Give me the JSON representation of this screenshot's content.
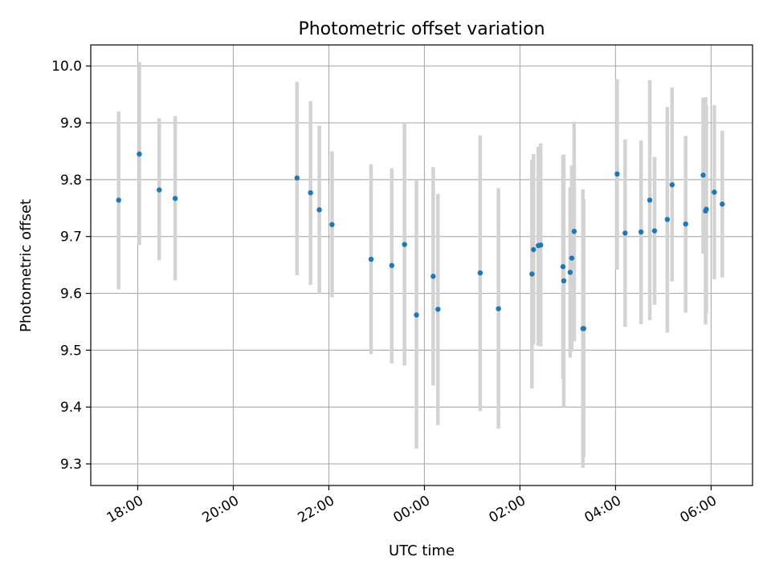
{
  "chart_data": {
    "type": "scatter",
    "title": "Photometric offset variation",
    "xlabel": "UTC time",
    "ylabel": "Photometric offset",
    "x_tick_labels": [
      "18:00",
      "20:00",
      "22:00",
      "00:00",
      "02:00",
      "04:00",
      "06:00"
    ],
    "y_tick_labels": [
      "9.3",
      "9.4",
      "9.5",
      "9.6",
      "9.7",
      "9.8",
      "9.9",
      "10.0"
    ],
    "ylim": [
      9.262,
      10.037
    ],
    "xlim": [
      "17:01",
      "06:52"
    ],
    "grid": true,
    "colors": {
      "marker": "#1f77b4",
      "errorbar": "#d3d3d3",
      "grid": "#b0b0b0",
      "axes": "#000000"
    },
    "points": [
      {
        "time": "17:36",
        "y": 9.764,
        "ylo": 9.607,
        "yhi": 9.92
      },
      {
        "time": "18:02",
        "y": 9.845,
        "ylo": 9.685,
        "yhi": 10.007
      },
      {
        "time": "18:27",
        "y": 9.782,
        "ylo": 9.658,
        "yhi": 9.908
      },
      {
        "time": "18:47",
        "y": 9.767,
        "ylo": 9.623,
        "yhi": 9.912
      },
      {
        "time": "21:20",
        "y": 9.803,
        "ylo": 9.632,
        "yhi": 9.972
      },
      {
        "time": "21:37",
        "y": 9.777,
        "ylo": 9.615,
        "yhi": 9.938
      },
      {
        "time": "21:48",
        "y": 9.747,
        "ylo": 9.6,
        "yhi": 9.895
      },
      {
        "time": "22:04",
        "y": 9.721,
        "ylo": 9.593,
        "yhi": 9.85
      },
      {
        "time": "22:53",
        "y": 9.66,
        "ylo": 9.493,
        "yhi": 9.827
      },
      {
        "time": "23:19",
        "y": 9.649,
        "ylo": 9.477,
        "yhi": 9.82
      },
      {
        "time": "23:35",
        "y": 9.686,
        "ylo": 9.473,
        "yhi": 9.9
      },
      {
        "time": "23:50",
        "y": 9.562,
        "ylo": 9.327,
        "yhi": 9.8
      },
      {
        "time": "00:11",
        "y": 9.63,
        "ylo": 9.438,
        "yhi": 9.822
      },
      {
        "time": "00:17",
        "y": 9.572,
        "ylo": 9.368,
        "yhi": 9.775
      },
      {
        "time": "01:10",
        "y": 9.636,
        "ylo": 9.393,
        "yhi": 9.878
      },
      {
        "time": "01:33",
        "y": 9.573,
        "ylo": 9.362,
        "yhi": 9.785
      },
      {
        "time": "02:15",
        "y": 9.634,
        "ylo": 9.433,
        "yhi": 9.835
      },
      {
        "time": "02:17",
        "y": 9.677,
        "ylo": 9.51,
        "yhi": 9.845
      },
      {
        "time": "02:23",
        "y": 9.684,
        "ylo": 9.508,
        "yhi": 9.858
      },
      {
        "time": "02:26",
        "y": 9.685,
        "ylo": 9.507,
        "yhi": 9.864
      },
      {
        "time": "02:54",
        "y": 9.647,
        "ylo": 9.45,
        "yhi": 9.844
      },
      {
        "time": "02:55",
        "y": 9.622,
        "ylo": 9.4,
        "yhi": 9.844
      },
      {
        "time": "03:03",
        "y": 9.637,
        "ylo": 9.487,
        "yhi": 9.787
      },
      {
        "time": "03:05",
        "y": 9.662,
        "ylo": 9.498,
        "yhi": 9.825
      },
      {
        "time": "03:08",
        "y": 9.709,
        "ylo": 9.516,
        "yhi": 9.902
      },
      {
        "time": "03:19",
        "y": 9.538,
        "ylo": 9.293,
        "yhi": 9.783
      },
      {
        "time": "03:20",
        "y": 9.538,
        "ylo": 9.312,
        "yhi": 9.766
      },
      {
        "time": "04:02",
        "y": 9.81,
        "ylo": 9.642,
        "yhi": 9.977
      },
      {
        "time": "04:12",
        "y": 9.706,
        "ylo": 9.541,
        "yhi": 9.871
      },
      {
        "time": "04:32",
        "y": 9.708,
        "ylo": 9.546,
        "yhi": 9.869
      },
      {
        "time": "04:43",
        "y": 9.764,
        "ylo": 9.553,
        "yhi": 9.975
      },
      {
        "time": "04:49",
        "y": 9.71,
        "ylo": 9.58,
        "yhi": 9.84
      },
      {
        "time": "05:05",
        "y": 9.73,
        "ylo": 9.531,
        "yhi": 9.928
      },
      {
        "time": "05:11",
        "y": 9.791,
        "ylo": 9.621,
        "yhi": 9.962
      },
      {
        "time": "05:28",
        "y": 9.722,
        "ylo": 9.566,
        "yhi": 9.877
      },
      {
        "time": "05:50",
        "y": 9.808,
        "ylo": 9.67,
        "yhi": 9.944
      },
      {
        "time": "05:53",
        "y": 9.745,
        "ylo": 9.545,
        "yhi": 9.945
      },
      {
        "time": "05:54",
        "y": 9.748,
        "ylo": 9.565,
        "yhi": 9.931
      },
      {
        "time": "06:04",
        "y": 9.778,
        "ylo": 9.625,
        "yhi": 9.931
      },
      {
        "time": "06:14",
        "y": 9.757,
        "ylo": 9.628,
        "yhi": 9.886
      }
    ]
  }
}
